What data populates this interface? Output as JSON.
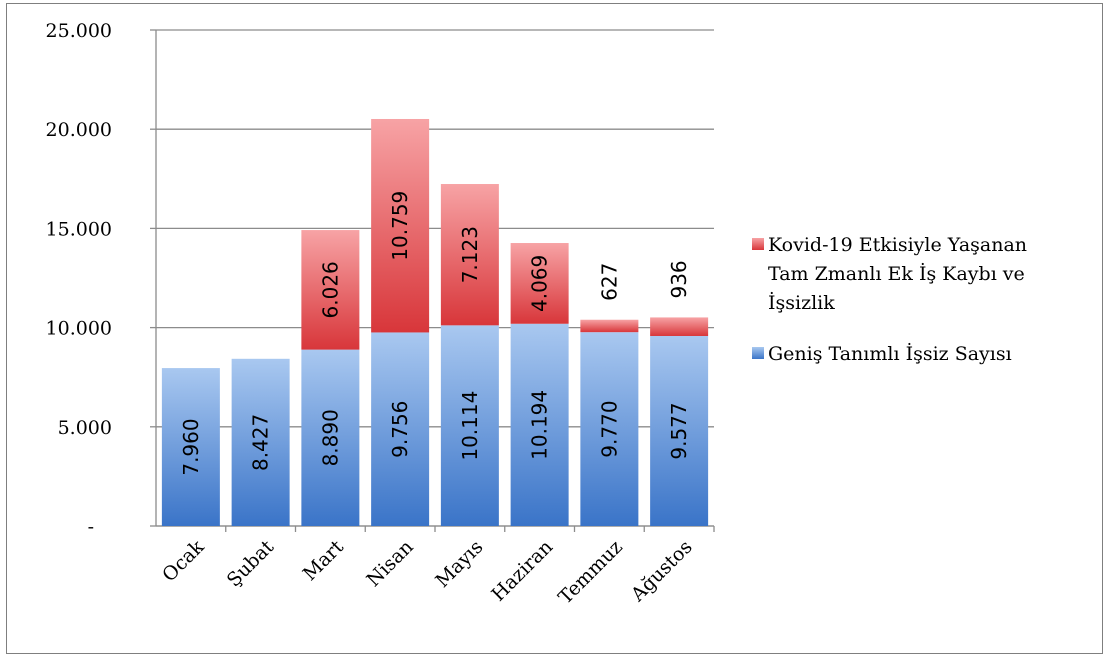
{
  "chart_data": {
    "type": "bar",
    "stacked": true,
    "categories": [
      "Ocak",
      "Şubat",
      "Mart",
      "Nisan",
      "Mayıs",
      "Haziran",
      "Temmuz",
      "Ağustos"
    ],
    "series": [
      {
        "name": "Geniş Tanımlı İşsiz Sayısı",
        "values": [
          7960,
          8427,
          8890,
          9756,
          10114,
          10194,
          9770,
          9577
        ],
        "labels": [
          "7.960",
          "8.427",
          "8.890",
          "9.756",
          "10.114",
          "10.194",
          "9.770",
          "9.577"
        ],
        "color": "#4a86d6"
      },
      {
        "name_lines": [
          "Kovid-19 Etkisiyle Yaşanan",
          "Tam Zmanlı  Ek İş Kaybı ve",
          "İşsizlik"
        ],
        "values": [
          0,
          0,
          6026,
          10759,
          7123,
          4069,
          627,
          936
        ],
        "labels": [
          "",
          "",
          "6.026",
          "10.759",
          "7.123",
          "4.069",
          "627",
          "936"
        ],
        "color": "#e0484a"
      }
    ],
    "ylim": [
      0,
      25000
    ],
    "yticks": [
      0,
      5000,
      10000,
      15000,
      20000,
      25000
    ],
    "ytick_labels": [
      "-",
      "5.000",
      "10.000",
      "15.000",
      "20.000",
      "25.000"
    ],
    "grid": true,
    "legend_position": "right"
  }
}
